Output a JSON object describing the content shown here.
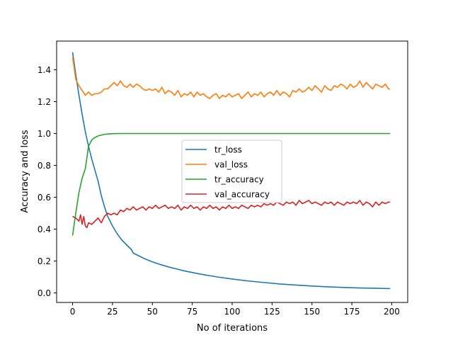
{
  "chart_data": {
    "type": "line",
    "title": "",
    "xlabel": "No of iterations",
    "ylabel": "Accuracy and loss",
    "xlim": [
      -10,
      210
    ],
    "ylim": [
      -0.06,
      1.58
    ],
    "xticks": [
      0,
      25,
      50,
      75,
      100,
      125,
      150,
      175,
      200
    ],
    "yticks": [
      0.0,
      0.2,
      0.4,
      0.6,
      0.8,
      1.0,
      1.2,
      1.4
    ],
    "ytick_labels": [
      "0.0",
      "0.2",
      "0.4",
      "0.6",
      "0.8",
      "1.0",
      "1.2",
      "1.4"
    ],
    "grid": false,
    "legend_placement": "center",
    "series": [
      {
        "name": "tr_loss",
        "color": "#1f77b4",
        "points": [
          [
            0,
            1.51
          ],
          [
            2,
            1.37
          ],
          [
            4,
            1.24
          ],
          [
            6,
            1.12
          ],
          [
            8,
            1.01
          ],
          [
            10,
            0.92
          ],
          [
            12,
            0.84
          ],
          [
            14,
            0.77
          ],
          [
            16,
            0.7
          ],
          [
            18,
            0.61
          ],
          [
            20,
            0.54
          ],
          [
            22,
            0.48
          ],
          [
            25,
            0.42
          ],
          [
            28,
            0.37
          ],
          [
            31,
            0.33
          ],
          [
            34,
            0.3
          ],
          [
            37,
            0.27
          ],
          [
            38,
            0.25
          ],
          [
            40,
            0.24
          ],
          [
            45,
            0.215
          ],
          [
            50,
            0.195
          ],
          [
            55,
            0.178
          ],
          [
            60,
            0.163
          ],
          [
            70,
            0.138
          ],
          [
            80,
            0.118
          ],
          [
            90,
            0.101
          ],
          [
            100,
            0.087
          ],
          [
            110,
            0.075
          ],
          [
            120,
            0.065
          ],
          [
            130,
            0.056
          ],
          [
            140,
            0.049
          ],
          [
            150,
            0.043
          ],
          [
            160,
            0.038
          ],
          [
            170,
            0.034
          ],
          [
            180,
            0.031
          ],
          [
            190,
            0.029
          ],
          [
            199,
            0.027
          ]
        ]
      },
      {
        "name": "val_loss",
        "color": "#ff7f0e",
        "points": [
          [
            0,
            1.48
          ],
          [
            2,
            1.34
          ],
          [
            4,
            1.3
          ],
          [
            6,
            1.27
          ],
          [
            8,
            1.24
          ],
          [
            10,
            1.26
          ],
          [
            12,
            1.24
          ],
          [
            14,
            1.25
          ],
          [
            16,
            1.25
          ],
          [
            18,
            1.26
          ],
          [
            20,
            1.28
          ],
          [
            22,
            1.28
          ],
          [
            24,
            1.3
          ],
          [
            26,
            1.32
          ],
          [
            28,
            1.3
          ],
          [
            30,
            1.33
          ],
          [
            32,
            1.3
          ],
          [
            34,
            1.29
          ],
          [
            36,
            1.31
          ],
          [
            38,
            1.29
          ],
          [
            40,
            1.31
          ],
          [
            42,
            1.3
          ],
          [
            44,
            1.28
          ],
          [
            46,
            1.27
          ],
          [
            48,
            1.28
          ],
          [
            50,
            1.27
          ],
          [
            52,
            1.28
          ],
          [
            54,
            1.26
          ],
          [
            56,
            1.29
          ],
          [
            58,
            1.25
          ],
          [
            60,
            1.27
          ],
          [
            62,
            1.26
          ],
          [
            64,
            1.24
          ],
          [
            66,
            1.27
          ],
          [
            68,
            1.23
          ],
          [
            70,
            1.25
          ],
          [
            72,
            1.24
          ],
          [
            74,
            1.26
          ],
          [
            76,
            1.23
          ],
          [
            78,
            1.26
          ],
          [
            80,
            1.24
          ],
          [
            82,
            1.25
          ],
          [
            84,
            1.23
          ],
          [
            86,
            1.22
          ],
          [
            88,
            1.24
          ],
          [
            90,
            1.25
          ],
          [
            92,
            1.22
          ],
          [
            94,
            1.24
          ],
          [
            96,
            1.23
          ],
          [
            98,
            1.25
          ],
          [
            100,
            1.23
          ],
          [
            102,
            1.24
          ],
          [
            104,
            1.25
          ],
          [
            106,
            1.22
          ],
          [
            108,
            1.24
          ],
          [
            110,
            1.26
          ],
          [
            112,
            1.23
          ],
          [
            114,
            1.25
          ],
          [
            116,
            1.24
          ],
          [
            118,
            1.26
          ],
          [
            120,
            1.23
          ],
          [
            122,
            1.25
          ],
          [
            124,
            1.26
          ],
          [
            126,
            1.24
          ],
          [
            128,
            1.27
          ],
          [
            130,
            1.24
          ],
          [
            132,
            1.26
          ],
          [
            134,
            1.25
          ],
          [
            136,
            1.23
          ],
          [
            138,
            1.27
          ],
          [
            140,
            1.26
          ],
          [
            142,
            1.28
          ],
          [
            144,
            1.26
          ],
          [
            146,
            1.27
          ],
          [
            148,
            1.29
          ],
          [
            150,
            1.27
          ],
          [
            152,
            1.3
          ],
          [
            154,
            1.28
          ],
          [
            156,
            1.26
          ],
          [
            158,
            1.3
          ],
          [
            160,
            1.28
          ],
          [
            162,
            1.27
          ],
          [
            164,
            1.3
          ],
          [
            166,
            1.29
          ],
          [
            168,
            1.31
          ],
          [
            170,
            1.3
          ],
          [
            172,
            1.28
          ],
          [
            174,
            1.31
          ],
          [
            176,
            1.29
          ],
          [
            178,
            1.3
          ],
          [
            180,
            1.33
          ],
          [
            182,
            1.29
          ],
          [
            184,
            1.32
          ],
          [
            186,
            1.3
          ],
          [
            188,
            1.28
          ],
          [
            190,
            1.31
          ],
          [
            192,
            1.3
          ],
          [
            194,
            1.29
          ],
          [
            196,
            1.31
          ],
          [
            198,
            1.28
          ],
          [
            199,
            1.28
          ]
        ]
      },
      {
        "name": "tr_accuracy",
        "color": "#2ca02c",
        "points": [
          [
            0,
            0.36
          ],
          [
            2,
            0.5
          ],
          [
            4,
            0.63
          ],
          [
            6,
            0.72
          ],
          [
            8,
            0.78
          ],
          [
            10,
            0.92
          ],
          [
            12,
            0.96
          ],
          [
            14,
            0.975
          ],
          [
            16,
            0.985
          ],
          [
            18,
            0.99
          ],
          [
            20,
            0.995
          ],
          [
            22,
            0.997
          ],
          [
            25,
            0.999
          ],
          [
            30,
            1.0
          ],
          [
            50,
            1.0
          ],
          [
            100,
            1.0
          ],
          [
            150,
            1.0
          ],
          [
            199,
            1.0
          ]
        ]
      },
      {
        "name": "val_accuracy",
        "color": "#d62728",
        "points": [
          [
            0,
            0.48
          ],
          [
            2,
            0.47
          ],
          [
            4,
            0.45
          ],
          [
            5,
            0.49
          ],
          [
            6,
            0.43
          ],
          [
            7,
            0.48
          ],
          [
            8,
            0.42
          ],
          [
            9,
            0.41
          ],
          [
            10,
            0.44
          ],
          [
            12,
            0.43
          ],
          [
            14,
            0.45
          ],
          [
            16,
            0.47
          ],
          [
            18,
            0.44
          ],
          [
            20,
            0.48
          ],
          [
            22,
            0.5
          ],
          [
            24,
            0.49
          ],
          [
            26,
            0.5
          ],
          [
            28,
            0.49
          ],
          [
            30,
            0.52
          ],
          [
            32,
            0.51
          ],
          [
            34,
            0.53
          ],
          [
            36,
            0.52
          ],
          [
            38,
            0.54
          ],
          [
            40,
            0.52
          ],
          [
            42,
            0.53
          ],
          [
            44,
            0.54
          ],
          [
            46,
            0.52
          ],
          [
            48,
            0.54
          ],
          [
            50,
            0.53
          ],
          [
            52,
            0.55
          ],
          [
            54,
            0.53
          ],
          [
            56,
            0.54
          ],
          [
            58,
            0.55
          ],
          [
            60,
            0.53
          ],
          [
            62,
            0.54
          ],
          [
            64,
            0.53
          ],
          [
            66,
            0.55
          ],
          [
            68,
            0.52
          ],
          [
            70,
            0.54
          ],
          [
            72,
            0.53
          ],
          [
            74,
            0.55
          ],
          [
            76,
            0.53
          ],
          [
            78,
            0.54
          ],
          [
            80,
            0.52
          ],
          [
            82,
            0.54
          ],
          [
            84,
            0.53
          ],
          [
            86,
            0.55
          ],
          [
            88,
            0.53
          ],
          [
            90,
            0.54
          ],
          [
            92,
            0.52
          ],
          [
            94,
            0.54
          ],
          [
            96,
            0.53
          ],
          [
            98,
            0.55
          ],
          [
            100,
            0.53
          ],
          [
            102,
            0.54
          ],
          [
            104,
            0.53
          ],
          [
            106,
            0.55
          ],
          [
            108,
            0.54
          ],
          [
            110,
            0.53
          ],
          [
            112,
            0.55
          ],
          [
            114,
            0.54
          ],
          [
            116,
            0.55
          ],
          [
            118,
            0.54
          ],
          [
            120,
            0.56
          ],
          [
            122,
            0.55
          ],
          [
            124,
            0.56
          ],
          [
            126,
            0.55
          ],
          [
            128,
            0.57
          ],
          [
            130,
            0.56
          ],
          [
            132,
            0.55
          ],
          [
            134,
            0.57
          ],
          [
            136,
            0.56
          ],
          [
            138,
            0.57
          ],
          [
            140,
            0.55
          ],
          [
            142,
            0.58
          ],
          [
            144,
            0.56
          ],
          [
            146,
            0.57
          ],
          [
            148,
            0.58
          ],
          [
            150,
            0.56
          ],
          [
            152,
            0.57
          ],
          [
            154,
            0.56
          ],
          [
            156,
            0.55
          ],
          [
            158,
            0.57
          ],
          [
            160,
            0.56
          ],
          [
            162,
            0.57
          ],
          [
            164,
            0.55
          ],
          [
            166,
            0.57
          ],
          [
            168,
            0.56
          ],
          [
            170,
            0.55
          ],
          [
            172,
            0.57
          ],
          [
            174,
            0.56
          ],
          [
            176,
            0.57
          ],
          [
            178,
            0.56
          ],
          [
            180,
            0.58
          ],
          [
            182,
            0.55
          ],
          [
            184,
            0.57
          ],
          [
            186,
            0.56
          ],
          [
            188,
            0.54
          ],
          [
            190,
            0.57
          ],
          [
            192,
            0.55
          ],
          [
            194,
            0.57
          ],
          [
            196,
            0.56
          ],
          [
            198,
            0.57
          ],
          [
            199,
            0.57
          ]
        ]
      }
    ]
  }
}
